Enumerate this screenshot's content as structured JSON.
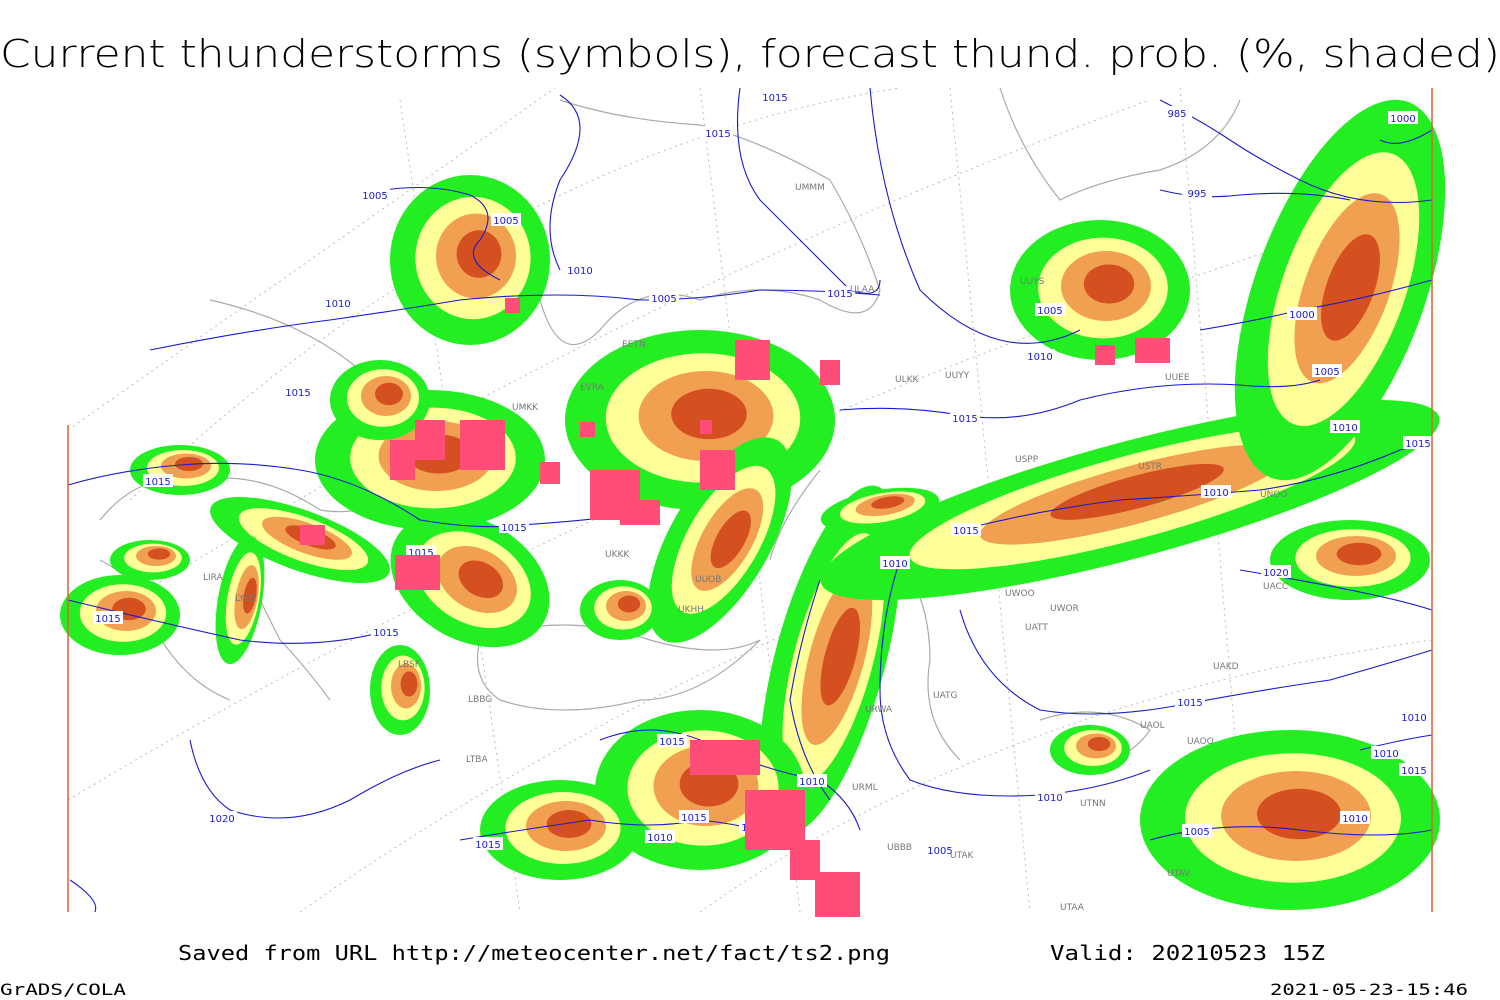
{
  "header": {
    "title": "Current thunderstorms (symbols), forecast thund. prob. (%, shaded)"
  },
  "footer": {
    "source": "Saved from URL http://meteocenter.net/fact/ts2.png",
    "valid": "Valid: 20210523 15Z",
    "software": "GrADS/COLA",
    "timestamp": "2021-05-23-15:46"
  },
  "isobars": {
    "labels": [
      "1015",
      "1015",
      "1005",
      "1005",
      "1010",
      "1010",
      "1005",
      "1015",
      "1015",
      "1015",
      "1015",
      "1015",
      "1010",
      "1015",
      "1020",
      "1015",
      "1015",
      "1010",
      "1015",
      "1010",
      "1005",
      "1015",
      "1010",
      "985",
      "995",
      "1000",
      "1000",
      "1005",
      "1005",
      "1010",
      "1015",
      "1020",
      "1015",
      "1010",
      "1010",
      "1015",
      "1010",
      "1005",
      "1015",
      "1010",
      "1015",
      "1005",
      "1010"
    ]
  },
  "stations": {
    "labels": [
      "UUYY",
      "ULKK",
      "UUYS",
      "USPP",
      "UUOB",
      "UKHH",
      "UATT",
      "UWOO",
      "UWOR",
      "UAKD",
      "UAOL",
      "UAOO",
      "UTNN",
      "UTAK",
      "UTAA",
      "UTAV",
      "LIRA",
      "LYBE",
      "LBSF",
      "LBBG",
      "LTBA",
      "UKKK",
      "UMMM",
      "ULAA",
      "EETN",
      "EVRA",
      "UMKK",
      "USTR",
      "UNOO",
      "UACC",
      "UATG",
      "UBBB",
      "URML",
      "URWA",
      "UUEE"
    ]
  }
}
